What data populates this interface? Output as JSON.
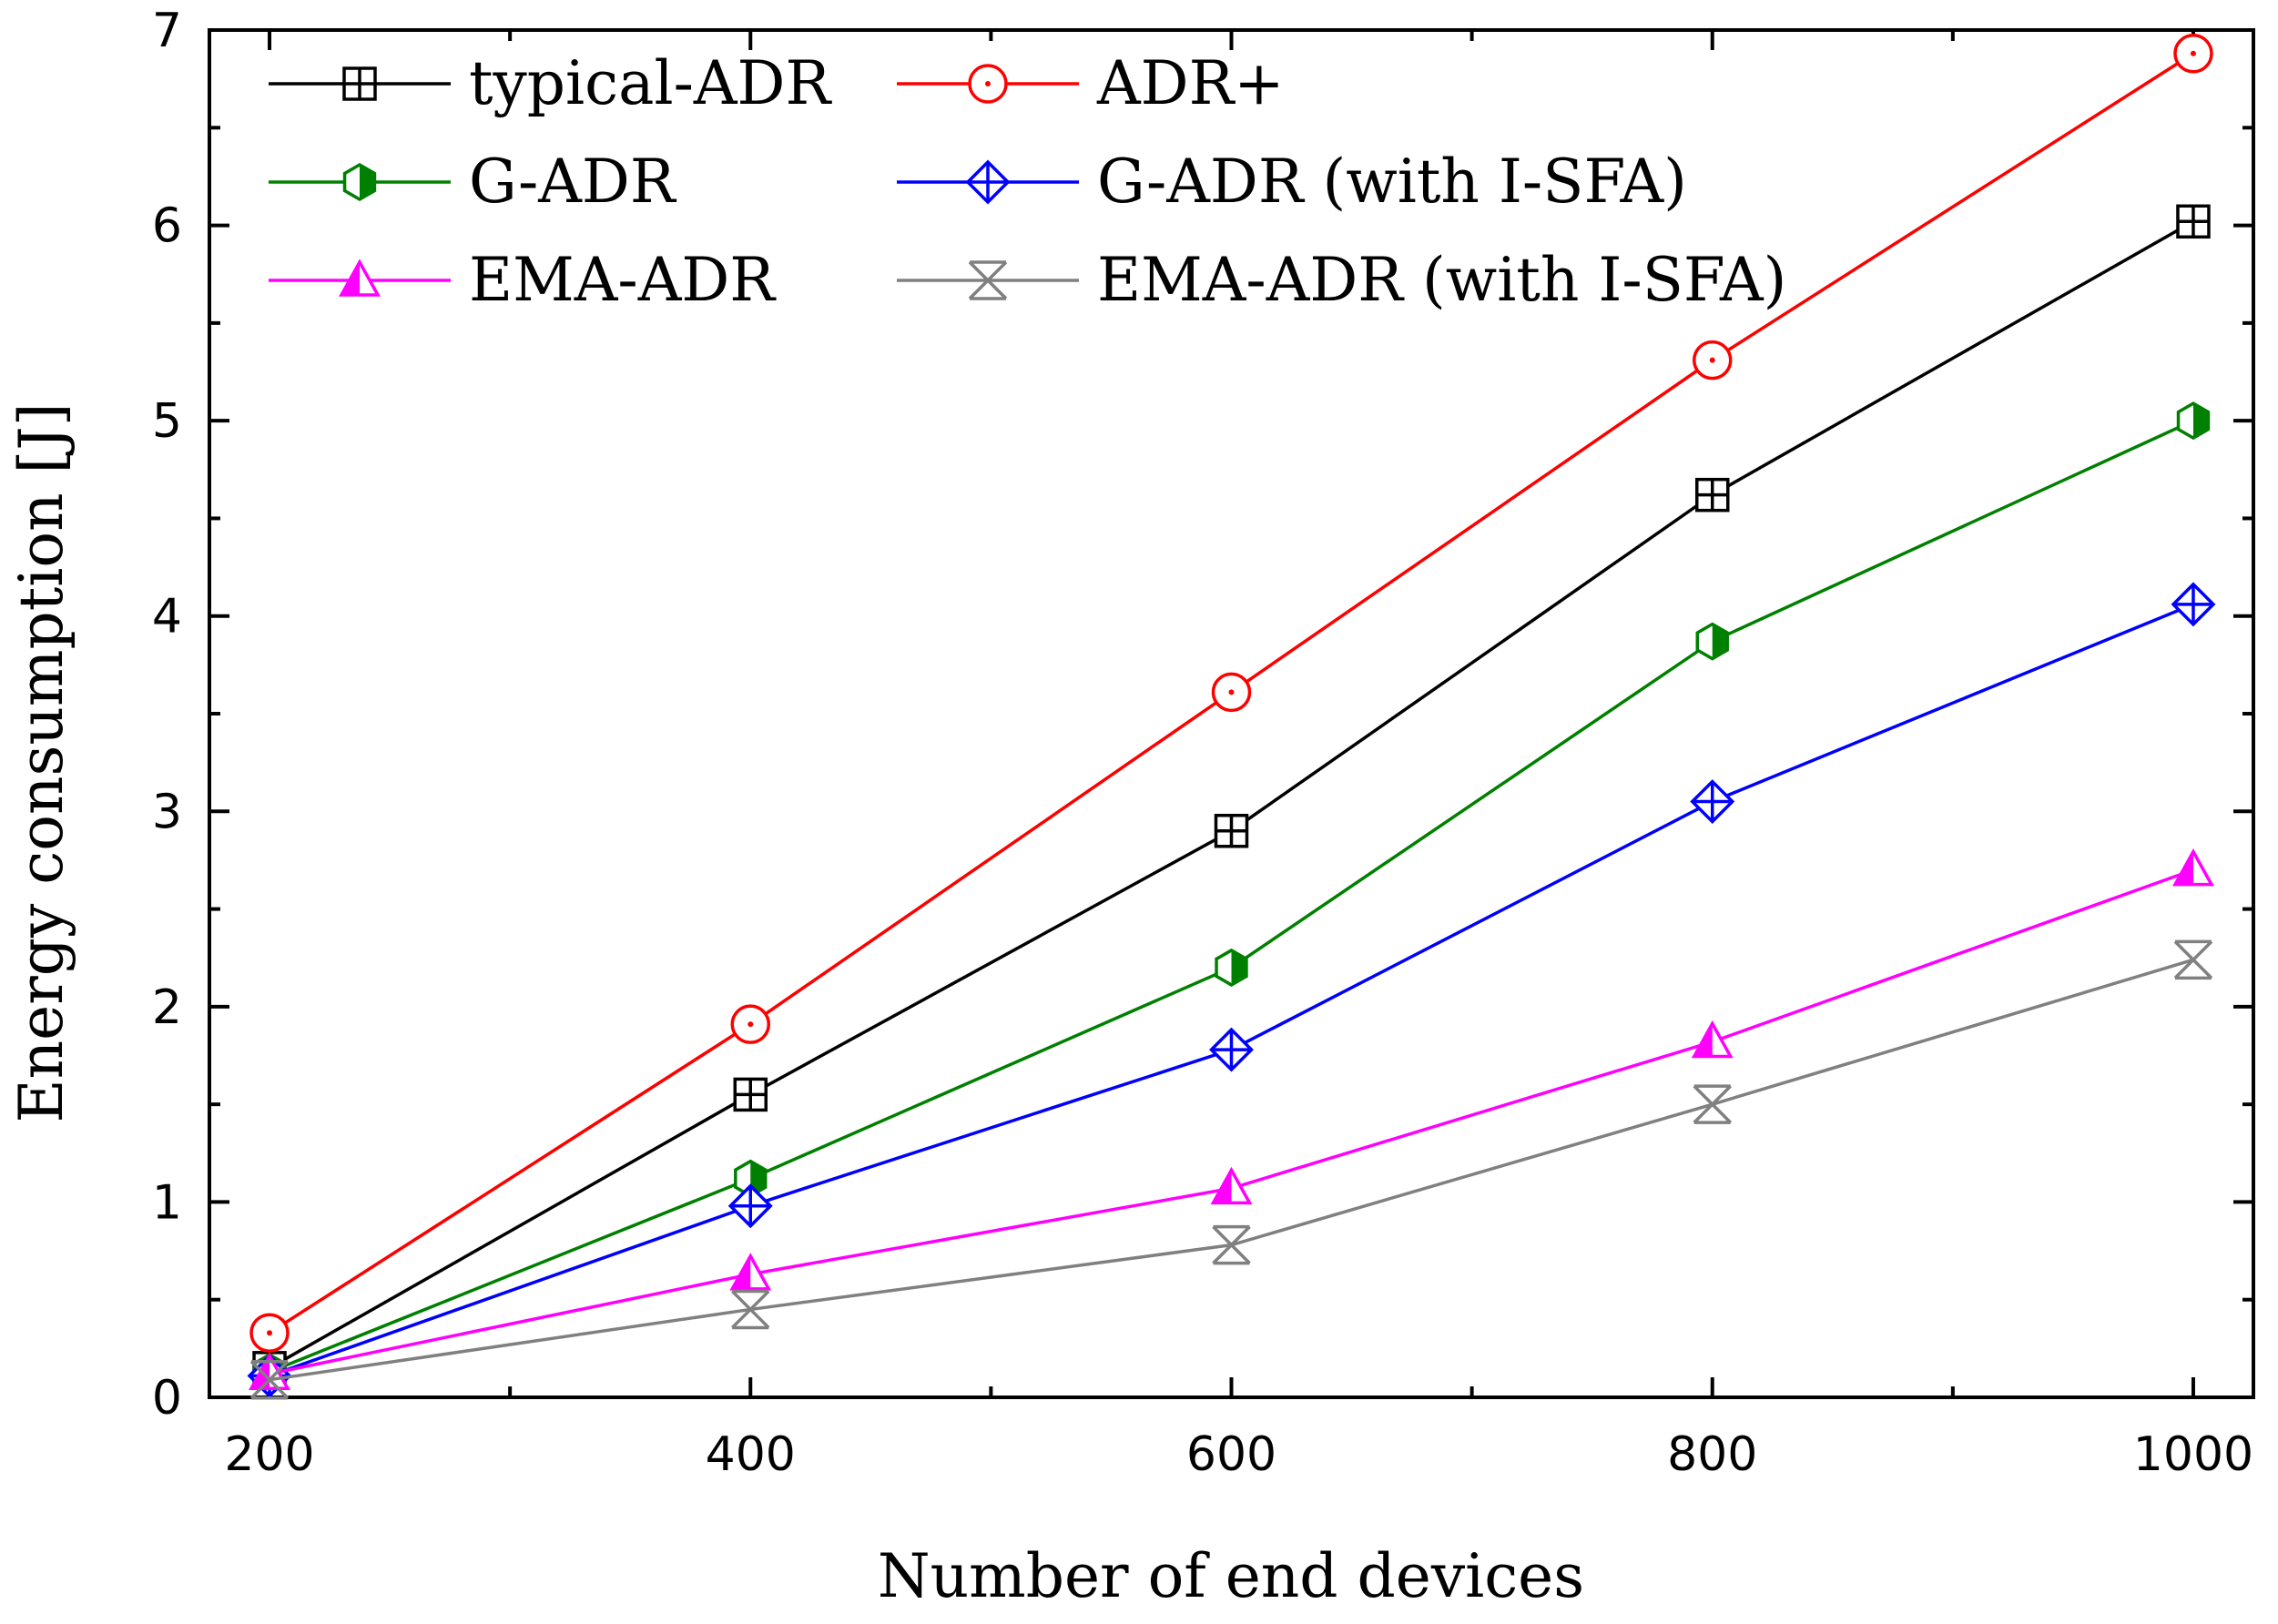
{
  "chart_data": {
    "type": "line",
    "title": "",
    "xlabel": "Number of end devices",
    "ylabel": "Energy consumption [J]",
    "x": [
      200,
      400,
      600,
      800,
      1000
    ],
    "xlim": [
      175,
      1025
    ],
    "ylim": [
      0,
      7
    ],
    "xticks": [
      200,
      400,
      600,
      800,
      1000
    ],
    "xticks_minor": [
      300,
      500,
      700,
      900
    ],
    "yticks": [
      0,
      1,
      2,
      3,
      4,
      5,
      6,
      7
    ],
    "yticks_minor": [
      0.5,
      1.5,
      2.5,
      3.5,
      4.5,
      5.5,
      6.5
    ],
    "grid": false,
    "legend_position": "top-left",
    "series": [
      {
        "name": "typical-ADR",
        "color": "#000000",
        "marker": "square-plus",
        "values": [
          0.15,
          1.55,
          2.9,
          4.62,
          6.02
        ]
      },
      {
        "name": "ADR+",
        "color": "#ff0000",
        "marker": "circle-dot",
        "values": [
          0.33,
          1.91,
          3.61,
          5.31,
          6.88
        ]
      },
      {
        "name": "G-ADR",
        "color": "#008000",
        "marker": "half-hexagon",
        "values": [
          0.13,
          1.12,
          2.2,
          3.87,
          5.0
        ]
      },
      {
        "name": "G-ADR (with I-SFA)",
        "color": "#0000ff",
        "marker": "diamond-plus",
        "values": [
          0.11,
          0.98,
          1.78,
          3.05,
          4.06
        ]
      },
      {
        "name": "EMA-ADR",
        "color": "#ff00ff",
        "marker": "half-triangle",
        "values": [
          0.12,
          0.63,
          1.07,
          1.82,
          2.7
        ]
      },
      {
        "name": "EMA-ADR (with I-SFA)",
        "color": "#808080",
        "marker": "x-star",
        "values": [
          0.09,
          0.45,
          0.78,
          1.5,
          2.24
        ]
      }
    ]
  }
}
